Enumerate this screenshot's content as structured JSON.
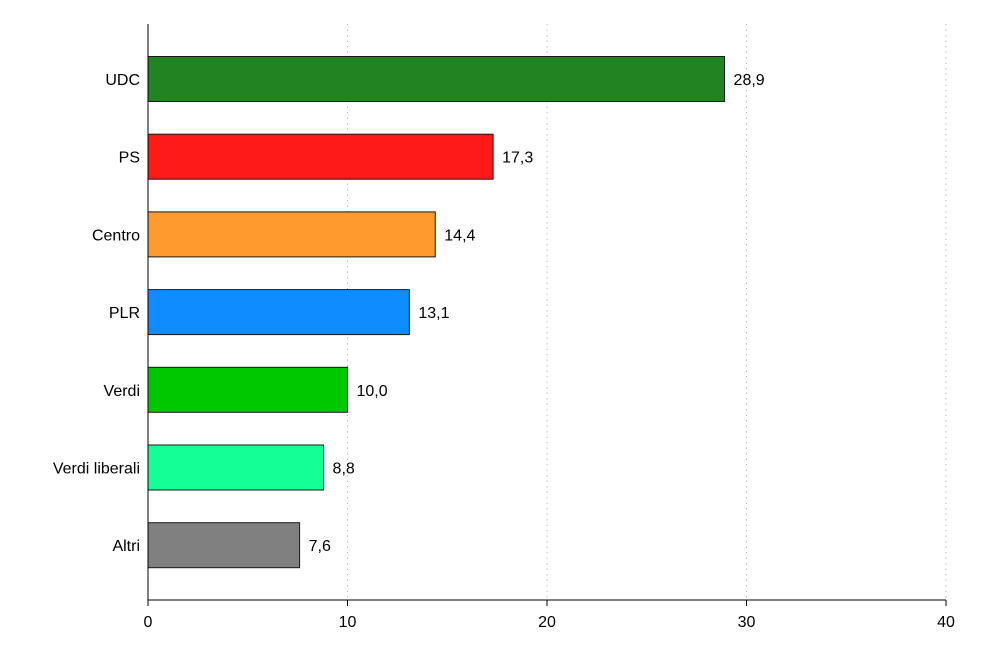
{
  "chart_data": {
    "type": "bar",
    "orientation": "horizontal",
    "title": "",
    "xlabel": "",
    "ylabel": "",
    "categories": [
      "UDC",
      "PS",
      "Centro",
      "PLR",
      "Verdi",
      "Verdi liberali",
      "Altri"
    ],
    "values": [
      28.9,
      17.3,
      14.4,
      13.1,
      10.0,
      8.8,
      7.6
    ],
    "value_labels": [
      "28,9",
      "17,3",
      "14,4",
      "13,1",
      "10,0",
      "8,8",
      "7,6"
    ],
    "colors": [
      "#218321",
      "#ff1a1a",
      "#ff9a2e",
      "#0f8cff",
      "#00c800",
      "#14ff96",
      "#808080"
    ],
    "xlim": [
      0,
      40
    ],
    "xticks": [
      0,
      10,
      20,
      30,
      40
    ],
    "xtick_labels": [
      "0",
      "10",
      "20",
      "30",
      "40"
    ],
    "grid": "vertical dotted",
    "legend": "none"
  }
}
